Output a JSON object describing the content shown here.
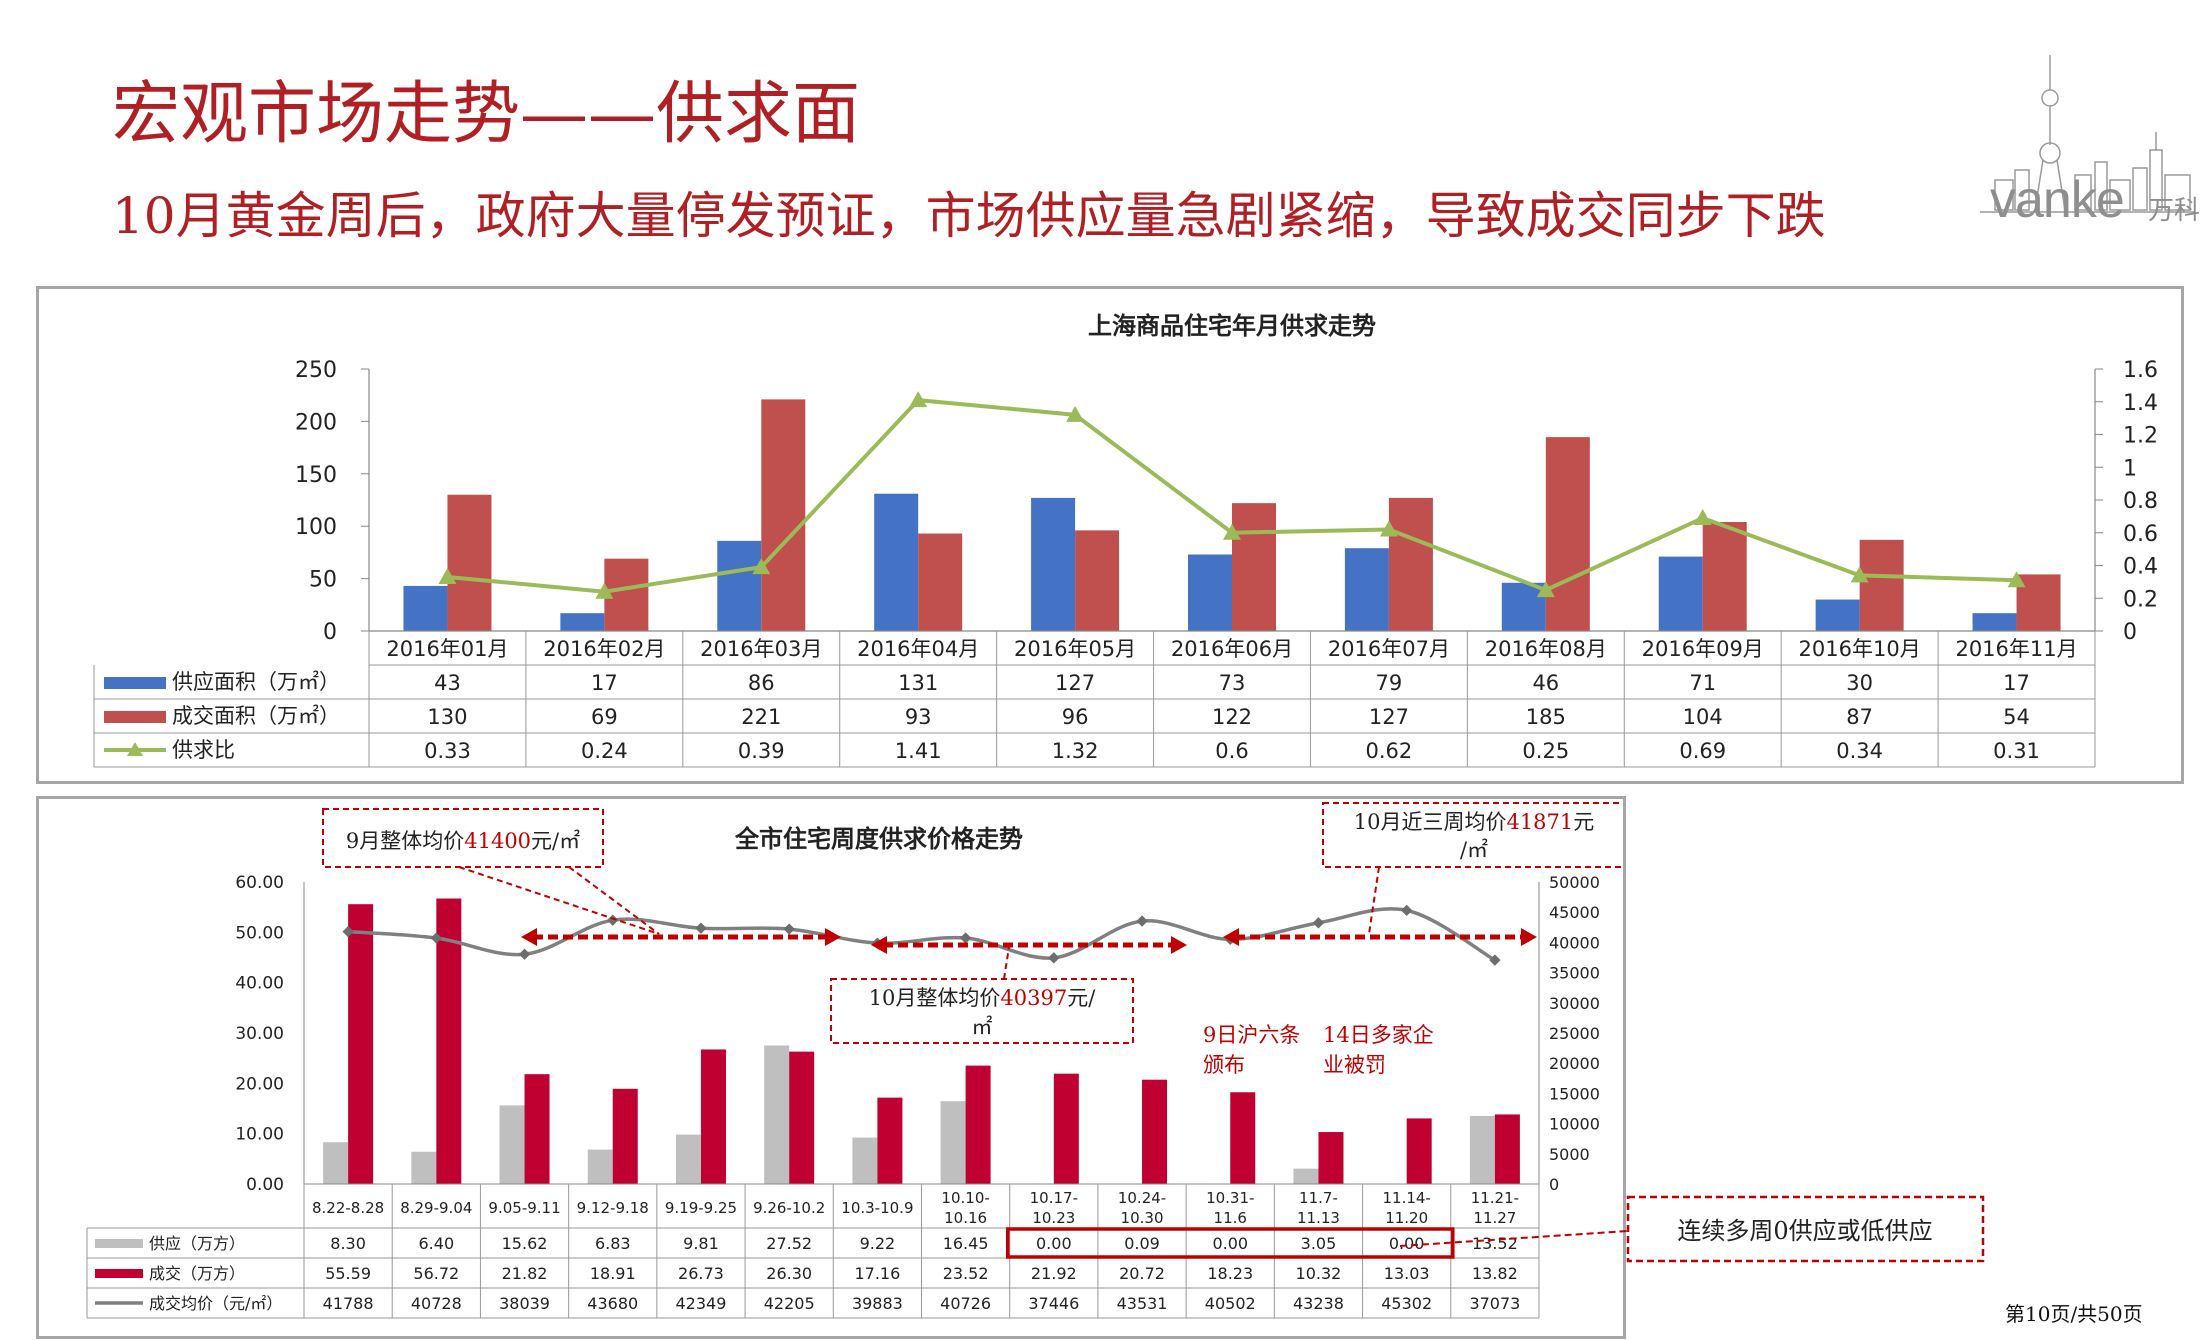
{
  "slide": {
    "title": "宏观市场走势——供求面",
    "subtitle": "10月黄金周后，政府大量停发预证，市场供应量急剧紧缩，导致成交同步下跌",
    "logo_text": "vanke",
    "logo_cn": "万科",
    "page_number": "第10页/共50页"
  },
  "chart_data": [
    {
      "type": "bar",
      "title": "上海商品住宅年月供求走势",
      "categories": [
        "2016年01月",
        "2016年02月",
        "2016年03月",
        "2016年04月",
        "2016年05月",
        "2016年06月",
        "2016年07月",
        "2016年08月",
        "2016年09月",
        "2016年10月",
        "2016年11月"
      ],
      "series": [
        {
          "name": "供应面积（万㎡）",
          "kind": "bar",
          "axis": "left",
          "color": "#4472c4",
          "values": [
            43,
            17,
            86,
            131,
            127,
            73,
            79,
            46,
            71,
            30,
            17
          ]
        },
        {
          "name": "成交面积（万㎡）",
          "kind": "bar",
          "axis": "left",
          "color": "#c0504d",
          "values": [
            130,
            69,
            221,
            93,
            96,
            122,
            127,
            185,
            104,
            87,
            54
          ]
        },
        {
          "name": "供求比",
          "kind": "line",
          "axis": "right",
          "color": "#9bbb59",
          "values": [
            0.33,
            0.24,
            0.39,
            1.41,
            1.32,
            0.6,
            0.62,
            0.25,
            0.69,
            0.34,
            0.31
          ]
        }
      ],
      "ylim": [
        0,
        250
      ],
      "y_ticks": [
        "0",
        "50",
        "100",
        "150",
        "200",
        "250"
      ],
      "y2lim": [
        0,
        1.6
      ],
      "y2_ticks": [
        "0",
        "0.2",
        "0.4",
        "0.6",
        "0.8",
        "1",
        "1.2",
        "1.4",
        "1.6"
      ],
      "table": true
    },
    {
      "type": "bar",
      "title": "全市住宅周度供求价格走势",
      "categories": [
        "8.22-8.28",
        "8.29-9.04",
        "9.05-9.11",
        "9.12-9.18",
        "9.19-9.25",
        "9.26-10.2",
        "10.3-10.9",
        "10.10-10.16",
        "10.17-10.23",
        "10.24-10.30",
        "10.31-11.6",
        "11.7-11.13",
        "11.14-11.20",
        "11.21-11.27"
      ],
      "category_lines": [
        [
          "8.22-8.28"
        ],
        [
          "8.29-9.04"
        ],
        [
          "9.05-9.11"
        ],
        [
          "9.12-9.18"
        ],
        [
          "9.19-9.25"
        ],
        [
          "9.26-10.2"
        ],
        [
          "10.3-10.9"
        ],
        [
          "10.10-",
          "10.16"
        ],
        [
          "10.17-",
          "10.23"
        ],
        [
          "10.24-",
          "10.30"
        ],
        [
          "10.31-",
          "11.6"
        ],
        [
          "11.7-",
          "11.13"
        ],
        [
          "11.14-",
          "11.20"
        ],
        [
          "11.21-",
          "11.27"
        ]
      ],
      "series": [
        {
          "name": "供应（万方）",
          "kind": "bar",
          "axis": "left",
          "color": "#bfbfbf",
          "values": [
            8.3,
            6.4,
            15.62,
            6.83,
            9.81,
            27.52,
            9.22,
            16.45,
            0.0,
            0.09,
            0.0,
            3.05,
            0.0,
            13.52
          ],
          "labels": [
            "8.30",
            "6.40",
            "15.62",
            "6.83",
            "9.81",
            "27.52",
            "9.22",
            "16.45",
            "0.00",
            "0.09",
            "0.00",
            "3.05",
            "0.00",
            "13.52"
          ]
        },
        {
          "name": "成交（万方）",
          "kind": "bar",
          "axis": "left",
          "color": "#c00031",
          "values": [
            55.59,
            56.72,
            21.82,
            18.91,
            26.73,
            26.3,
            17.16,
            23.52,
            21.92,
            20.72,
            18.23,
            10.32,
            13.03,
            13.82
          ],
          "labels": [
            "55.59",
            "56.72",
            "21.82",
            "18.91",
            "26.73",
            "26.30",
            "17.16",
            "23.52",
            "21.92",
            "20.72",
            "18.23",
            "10.32",
            "13.03",
            "13.82"
          ]
        },
        {
          "name": "成交均价（元/㎡）",
          "kind": "line",
          "axis": "right",
          "color": "#808080",
          "values": [
            41788,
            40728,
            38039,
            43680,
            42349,
            42205,
            39883,
            40726,
            37446,
            43531,
            40502,
            43238,
            45302,
            37073
          ]
        }
      ],
      "ylim": [
        0,
        60
      ],
      "y_ticks": [
        "0.00",
        "10.00",
        "20.00",
        "30.00",
        "40.00",
        "50.00",
        "60.00"
      ],
      "y2lim": [
        0,
        50000
      ],
      "y2_ticks": [
        "0",
        "5000",
        "10000",
        "15000",
        "20000",
        "25000",
        "30000",
        "35000",
        "40000",
        "45000",
        "50000"
      ],
      "table": true
    }
  ],
  "annotations": {
    "sep_avg_prefix": "9月整体均价",
    "sep_avg_value": "41400",
    "sep_avg_unit": "元/㎡",
    "oct_avg_prefix": "10月整体均价",
    "oct_avg_value": "40397",
    "oct_avg_unit_a": "元/",
    "oct_avg_unit_b": "㎡",
    "oct3w_prefix": "10月近三周均价",
    "oct3w_value": "41871",
    "oct3w_unit_a": "元",
    "oct3w_unit_b": "/㎡",
    "policy_a_1": "9日沪六条",
    "policy_a_2": "颁布",
    "policy_b_1": "14日多家企",
    "policy_b_2": "业被罚",
    "low_supply_note": "连续多周0供应或低供应"
  },
  "colors": {
    "title_red": "#b01f24",
    "annotation_red": "#c00000",
    "value_red": "#c0504d"
  }
}
